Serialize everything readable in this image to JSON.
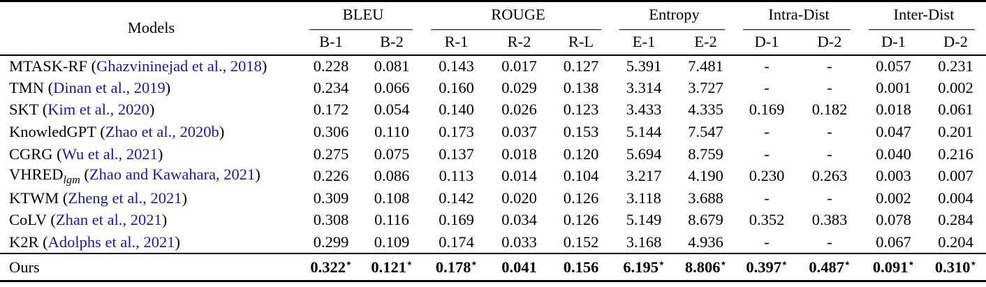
{
  "symbols": {
    "star": "⋆",
    "dash": "-",
    "open_paren": "(",
    "close_paren": ")"
  },
  "colors": {
    "citation_blue": "#1b1b8e",
    "text": "#000000",
    "background": "#ffffff"
  },
  "table": {
    "header": {
      "models_label": "Models",
      "groups": [
        {
          "label": "BLEU",
          "cols": [
            "B-1",
            "B-2"
          ]
        },
        {
          "label": "ROUGE",
          "cols": [
            "R-1",
            "R-2",
            "R-L"
          ]
        },
        {
          "label": "Entropy",
          "cols": [
            "E-1",
            "E-2"
          ]
        },
        {
          "label": "Intra-Dist",
          "cols": [
            "D-1",
            "D-2"
          ]
        },
        {
          "label": "Inter-Dist",
          "cols": [
            "D-1",
            "D-2"
          ]
        }
      ]
    },
    "rows": [
      {
        "model": "MTASK-RF",
        "subscript": "",
        "citation": "Ghazvininejad et al., 2018",
        "values": [
          "0.228",
          "0.081",
          "0.143",
          "0.017",
          "0.127",
          "5.391",
          "7.481",
          "-",
          "-",
          "0.057",
          "0.231"
        ]
      },
      {
        "model": "TMN",
        "subscript": "",
        "citation": "Dinan et al., 2019",
        "values": [
          "0.234",
          "0.066",
          "0.160",
          "0.029",
          "0.138",
          "3.314",
          "3.727",
          "-",
          "-",
          "0.001",
          "0.002"
        ]
      },
      {
        "model": "SKT",
        "subscript": "",
        "citation": "Kim et al., 2020",
        "values": [
          "0.172",
          "0.054",
          "0.140",
          "0.026",
          "0.123",
          "3.433",
          "4.335",
          "0.169",
          "0.182",
          "0.018",
          "0.061"
        ]
      },
      {
        "model": "KnowledGPT",
        "subscript": "",
        "citation": "Zhao et al., 2020b",
        "values": [
          "0.306",
          "0.110",
          "0.173",
          "0.037",
          "0.153",
          "5.144",
          "7.547",
          "-",
          "-",
          "0.047",
          "0.201"
        ]
      },
      {
        "model": "CGRG",
        "subscript": "",
        "citation": "Wu et al., 2021",
        "values": [
          "0.275",
          "0.075",
          "0.137",
          "0.018",
          "0.120",
          "5.694",
          "8.759",
          "-",
          "-",
          "0.040",
          "0.216"
        ]
      },
      {
        "model": "VHRED",
        "subscript": "lgm",
        "citation": "Zhao and Kawahara, 2021",
        "values": [
          "0.226",
          "0.086",
          "0.113",
          "0.014",
          "0.104",
          "3.217",
          "4.190",
          "0.230",
          "0.263",
          "0.003",
          "0.007"
        ]
      },
      {
        "model": "KTWM",
        "subscript": "",
        "citation": "Zheng et al., 2021",
        "values": [
          "0.309",
          "0.108",
          "0.142",
          "0.020",
          "0.126",
          "3.118",
          "3.688",
          "-",
          "-",
          "0.002",
          "0.004"
        ]
      },
      {
        "model": "CoLV",
        "subscript": "",
        "citation": "Zhan et al., 2021",
        "values": [
          "0.308",
          "0.116",
          "0.169",
          "0.034",
          "0.126",
          "5.149",
          "8.679",
          "0.352",
          "0.383",
          "0.078",
          "0.284"
        ]
      },
      {
        "model": "K2R",
        "subscript": "",
        "citation": "Adolphs et al., 2021",
        "values": [
          "0.299",
          "0.109",
          "0.174",
          "0.033",
          "0.152",
          "3.168",
          "4.936",
          "-",
          "-",
          "0.067",
          "0.204"
        ]
      }
    ],
    "final_row": {
      "model": "Ours",
      "values": [
        "0.322",
        "0.121",
        "0.178",
        "0.041",
        "0.156",
        "6.195",
        "8.806",
        "0.397",
        "0.487",
        "0.091",
        "0.310"
      ],
      "stars": [
        true,
        true,
        true,
        false,
        false,
        true,
        true,
        true,
        true,
        true,
        true
      ]
    }
  }
}
